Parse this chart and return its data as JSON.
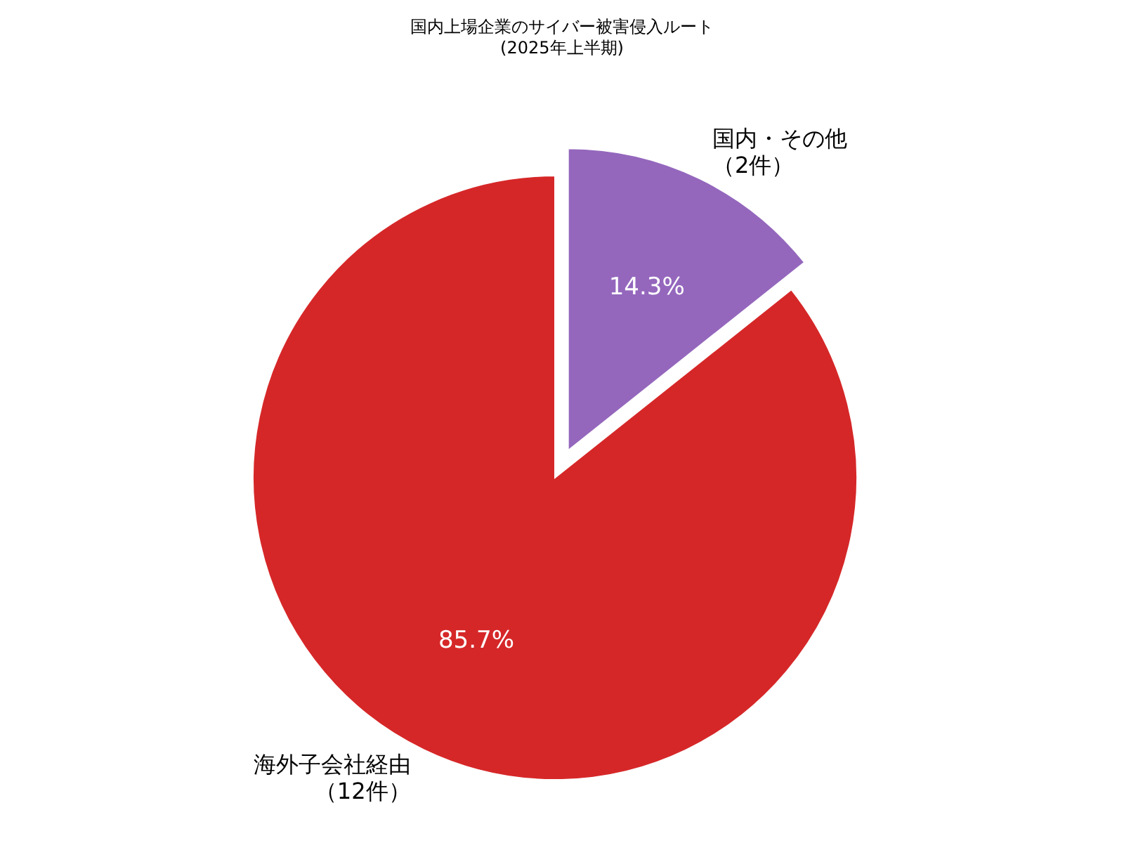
{
  "chart_data": {
    "type": "pie",
    "title": "国内上場企業のサイバー被害侵入ルート\n(2025年上半期)",
    "categories": [
      "海外子会社経由（12件）",
      "国内・その他（2件）"
    ],
    "values": [
      85.7,
      14.3
    ],
    "colors": [
      "#d62728",
      "#9467bd"
    ],
    "value_labels": [
      "85.7%",
      "14.3%"
    ],
    "legend": false
  }
}
